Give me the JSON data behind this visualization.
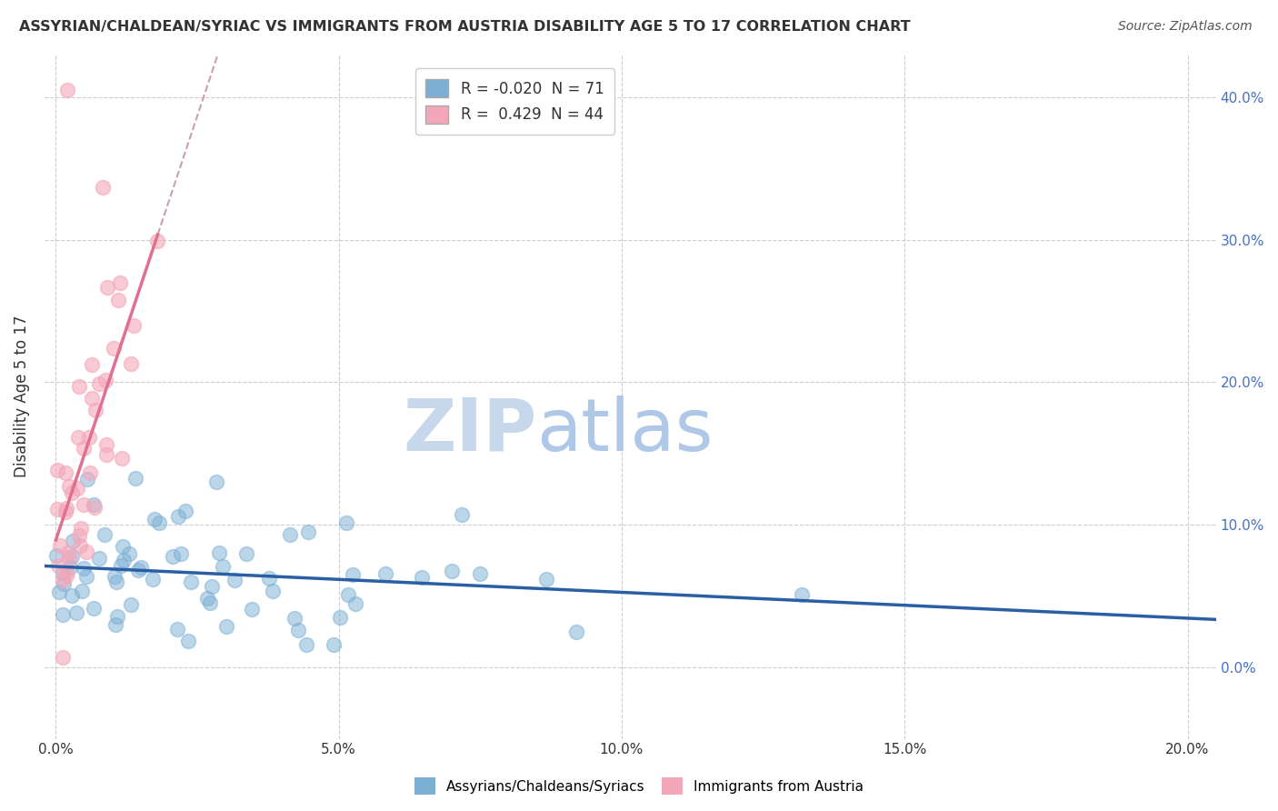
{
  "title": "ASSYRIAN/CHALDEAN/SYRIAC VS IMMIGRANTS FROM AUSTRIA DISABILITY AGE 5 TO 17 CORRELATION CHART",
  "source": "Source: ZipAtlas.com",
  "xlabel_ticks": [
    "0.0%",
    "5.0%",
    "10.0%",
    "15.0%",
    "20.0%"
  ],
  "xlabel_vals": [
    0.0,
    0.05,
    0.1,
    0.15,
    0.2
  ],
  "ylabel": "Disability Age 5 to 17",
  "ylabel_ticks_right": [
    "0.0%",
    "10.0%",
    "20.0%",
    "30.0%",
    "40.0%"
  ],
  "ylabel_vals": [
    0.0,
    0.1,
    0.2,
    0.3,
    0.4
  ],
  "xlim": [
    -0.002,
    0.205
  ],
  "ylim": [
    -0.05,
    0.43
  ],
  "blue_r": -0.02,
  "blue_n": 71,
  "pink_r": 0.429,
  "pink_n": 44,
  "blue_color": "#7bafd4",
  "pink_color": "#f4a7b9",
  "blue_line_color": "#2a5fa5",
  "pink_line_color": "#e07090",
  "pink_dashed_color": "#c8a0b0",
  "watermark_zip": "ZIP",
  "watermark_atlas": "atlas",
  "watermark_color_zip": "#c8d8ec",
  "watermark_color_atlas": "#b0c8e8",
  "background_color": "#ffffff",
  "grid_color": "#cccccc",
  "title_color": "#333333",
  "source_color": "#555555",
  "right_tick_color": "#4472c4"
}
